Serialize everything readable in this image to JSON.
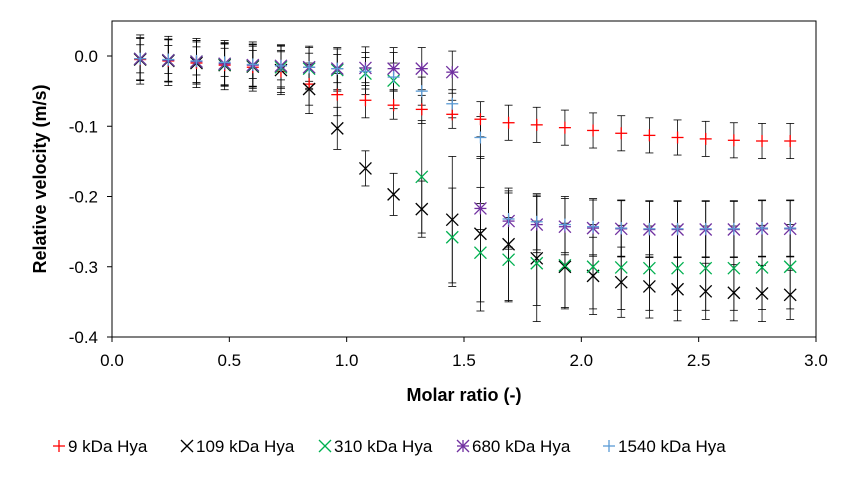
{
  "chart_data": {
    "type": "scatter",
    "title": "",
    "xlabel": "Molar ratio (-)",
    "ylabel": "Relative velocity (m/s)",
    "xlim": [
      0,
      3.0
    ],
    "ylim": [
      -0.4,
      0.05
    ],
    "x_ticks": [
      "0.0",
      "0.5",
      "1.0",
      "1.5",
      "2.0",
      "2.5",
      "3.0"
    ],
    "y_ticks": [
      "0.0",
      "-0.1",
      "-0.2",
      "-0.3",
      "-0.4"
    ],
    "grid": false,
    "legend_position": "bottom",
    "x": [
      0.12,
      0.24,
      0.36,
      0.48,
      0.6,
      0.72,
      0.84,
      0.96,
      1.08,
      1.2,
      1.32,
      1.45,
      1.57,
      1.69,
      1.81,
      1.93,
      2.05,
      2.17,
      2.29,
      2.41,
      2.53,
      2.65,
      2.77,
      2.89
    ],
    "series": [
      {
        "name": "9 kDa Hya",
        "marker": "plus",
        "color": "#ff0000",
        "values": [
          -0.005,
          -0.007,
          -0.01,
          -0.013,
          -0.016,
          -0.022,
          -0.04,
          -0.055,
          -0.063,
          -0.07,
          -0.076,
          -0.083,
          -0.09,
          -0.095,
          -0.098,
          -0.102,
          -0.106,
          -0.11,
          -0.113,
          -0.116,
          -0.118,
          -0.12,
          -0.121,
          -0.121
        ],
        "error": [
          0.03,
          0.03,
          0.03,
          0.03,
          0.03,
          0.03,
          0.03,
          0.03,
          0.025,
          0.02,
          0.02,
          0.02,
          0.025,
          0.025,
          0.025,
          0.025,
          0.025,
          0.025,
          0.025,
          0.025,
          0.025,
          0.025,
          0.025,
          0.025
        ]
      },
      {
        "name": "109 kDa Hya",
        "marker": "x",
        "color": "#000000",
        "values": [
          -0.005,
          -0.007,
          -0.01,
          -0.013,
          -0.015,
          -0.02,
          -0.047,
          -0.103,
          -0.16,
          -0.197,
          -0.218,
          -0.233,
          -0.253,
          -0.268,
          -0.288,
          -0.3,
          -0.313,
          -0.322,
          -0.328,
          -0.332,
          -0.335,
          -0.337,
          -0.338,
          -0.34
        ],
        "error": [
          0.035,
          0.035,
          0.035,
          0.035,
          0.035,
          0.035,
          0.035,
          0.03,
          0.025,
          0.03,
          0.04,
          0.09,
          0.11,
          0.08,
          0.09,
          0.06,
          0.055,
          0.05,
          0.045,
          0.045,
          0.04,
          0.04,
          0.04,
          0.035
        ]
      },
      {
        "name": "310 kDa Hya",
        "marker": "x",
        "color": "#00b050",
        "values": [
          -0.004,
          -0.006,
          -0.008,
          -0.012,
          -0.014,
          -0.016,
          -0.018,
          -0.02,
          -0.025,
          -0.035,
          -0.172,
          -0.258,
          -0.28,
          -0.29,
          -0.295,
          -0.298,
          -0.3,
          -0.301,
          -0.302,
          -0.302,
          -0.302,
          -0.302,
          -0.301,
          -0.3
        ],
        "error": [
          0.03,
          0.03,
          0.03,
          0.03,
          0.03,
          0.03,
          0.03,
          0.03,
          0.03,
          0.04,
          0.08,
          0.07,
          0.07,
          0.06,
          0.06,
          0.06,
          0.06,
          0.06,
          0.06,
          0.06,
          0.06,
          0.06,
          0.06,
          0.06
        ]
      },
      {
        "name": "680 kDa Hya",
        "marker": "asterisk",
        "color": "#7030a0",
        "values": [
          -0.004,
          -0.006,
          -0.008,
          -0.011,
          -0.013,
          -0.014,
          -0.016,
          -0.018,
          -0.017,
          -0.018,
          -0.018,
          -0.023,
          -0.217,
          -0.235,
          -0.24,
          -0.243,
          -0.245,
          -0.246,
          -0.247,
          -0.247,
          -0.247,
          -0.247,
          -0.246,
          -0.246
        ],
        "error": [
          0.03,
          0.03,
          0.03,
          0.03,
          0.03,
          0.03,
          0.03,
          0.03,
          0.03,
          0.03,
          0.03,
          0.03,
          0.03,
          0.04,
          0.04,
          0.04,
          0.04,
          0.04,
          0.04,
          0.04,
          0.04,
          0.04,
          0.04,
          0.04
        ]
      },
      {
        "name": "1540 kDa Hya",
        "marker": "plus",
        "color": "#5b9bd5",
        "values": [
          -0.004,
          -0.005,
          -0.007,
          -0.009,
          -0.012,
          -0.014,
          -0.016,
          -0.018,
          -0.022,
          -0.03,
          -0.05,
          -0.068,
          -0.116,
          -0.232,
          -0.236,
          -0.24,
          -0.243,
          -0.245,
          -0.246,
          -0.246,
          -0.246,
          -0.246,
          -0.245,
          -0.245
        ],
        "error": [
          0.02,
          0.02,
          0.02,
          0.02,
          0.02,
          0.02,
          0.02,
          0.02,
          0.02,
          0.02,
          0.02,
          0.02,
          0.03,
          0.04,
          0.04,
          0.04,
          0.04,
          0.04,
          0.04,
          0.04,
          0.04,
          0.04,
          0.04,
          0.04
        ]
      }
    ]
  }
}
